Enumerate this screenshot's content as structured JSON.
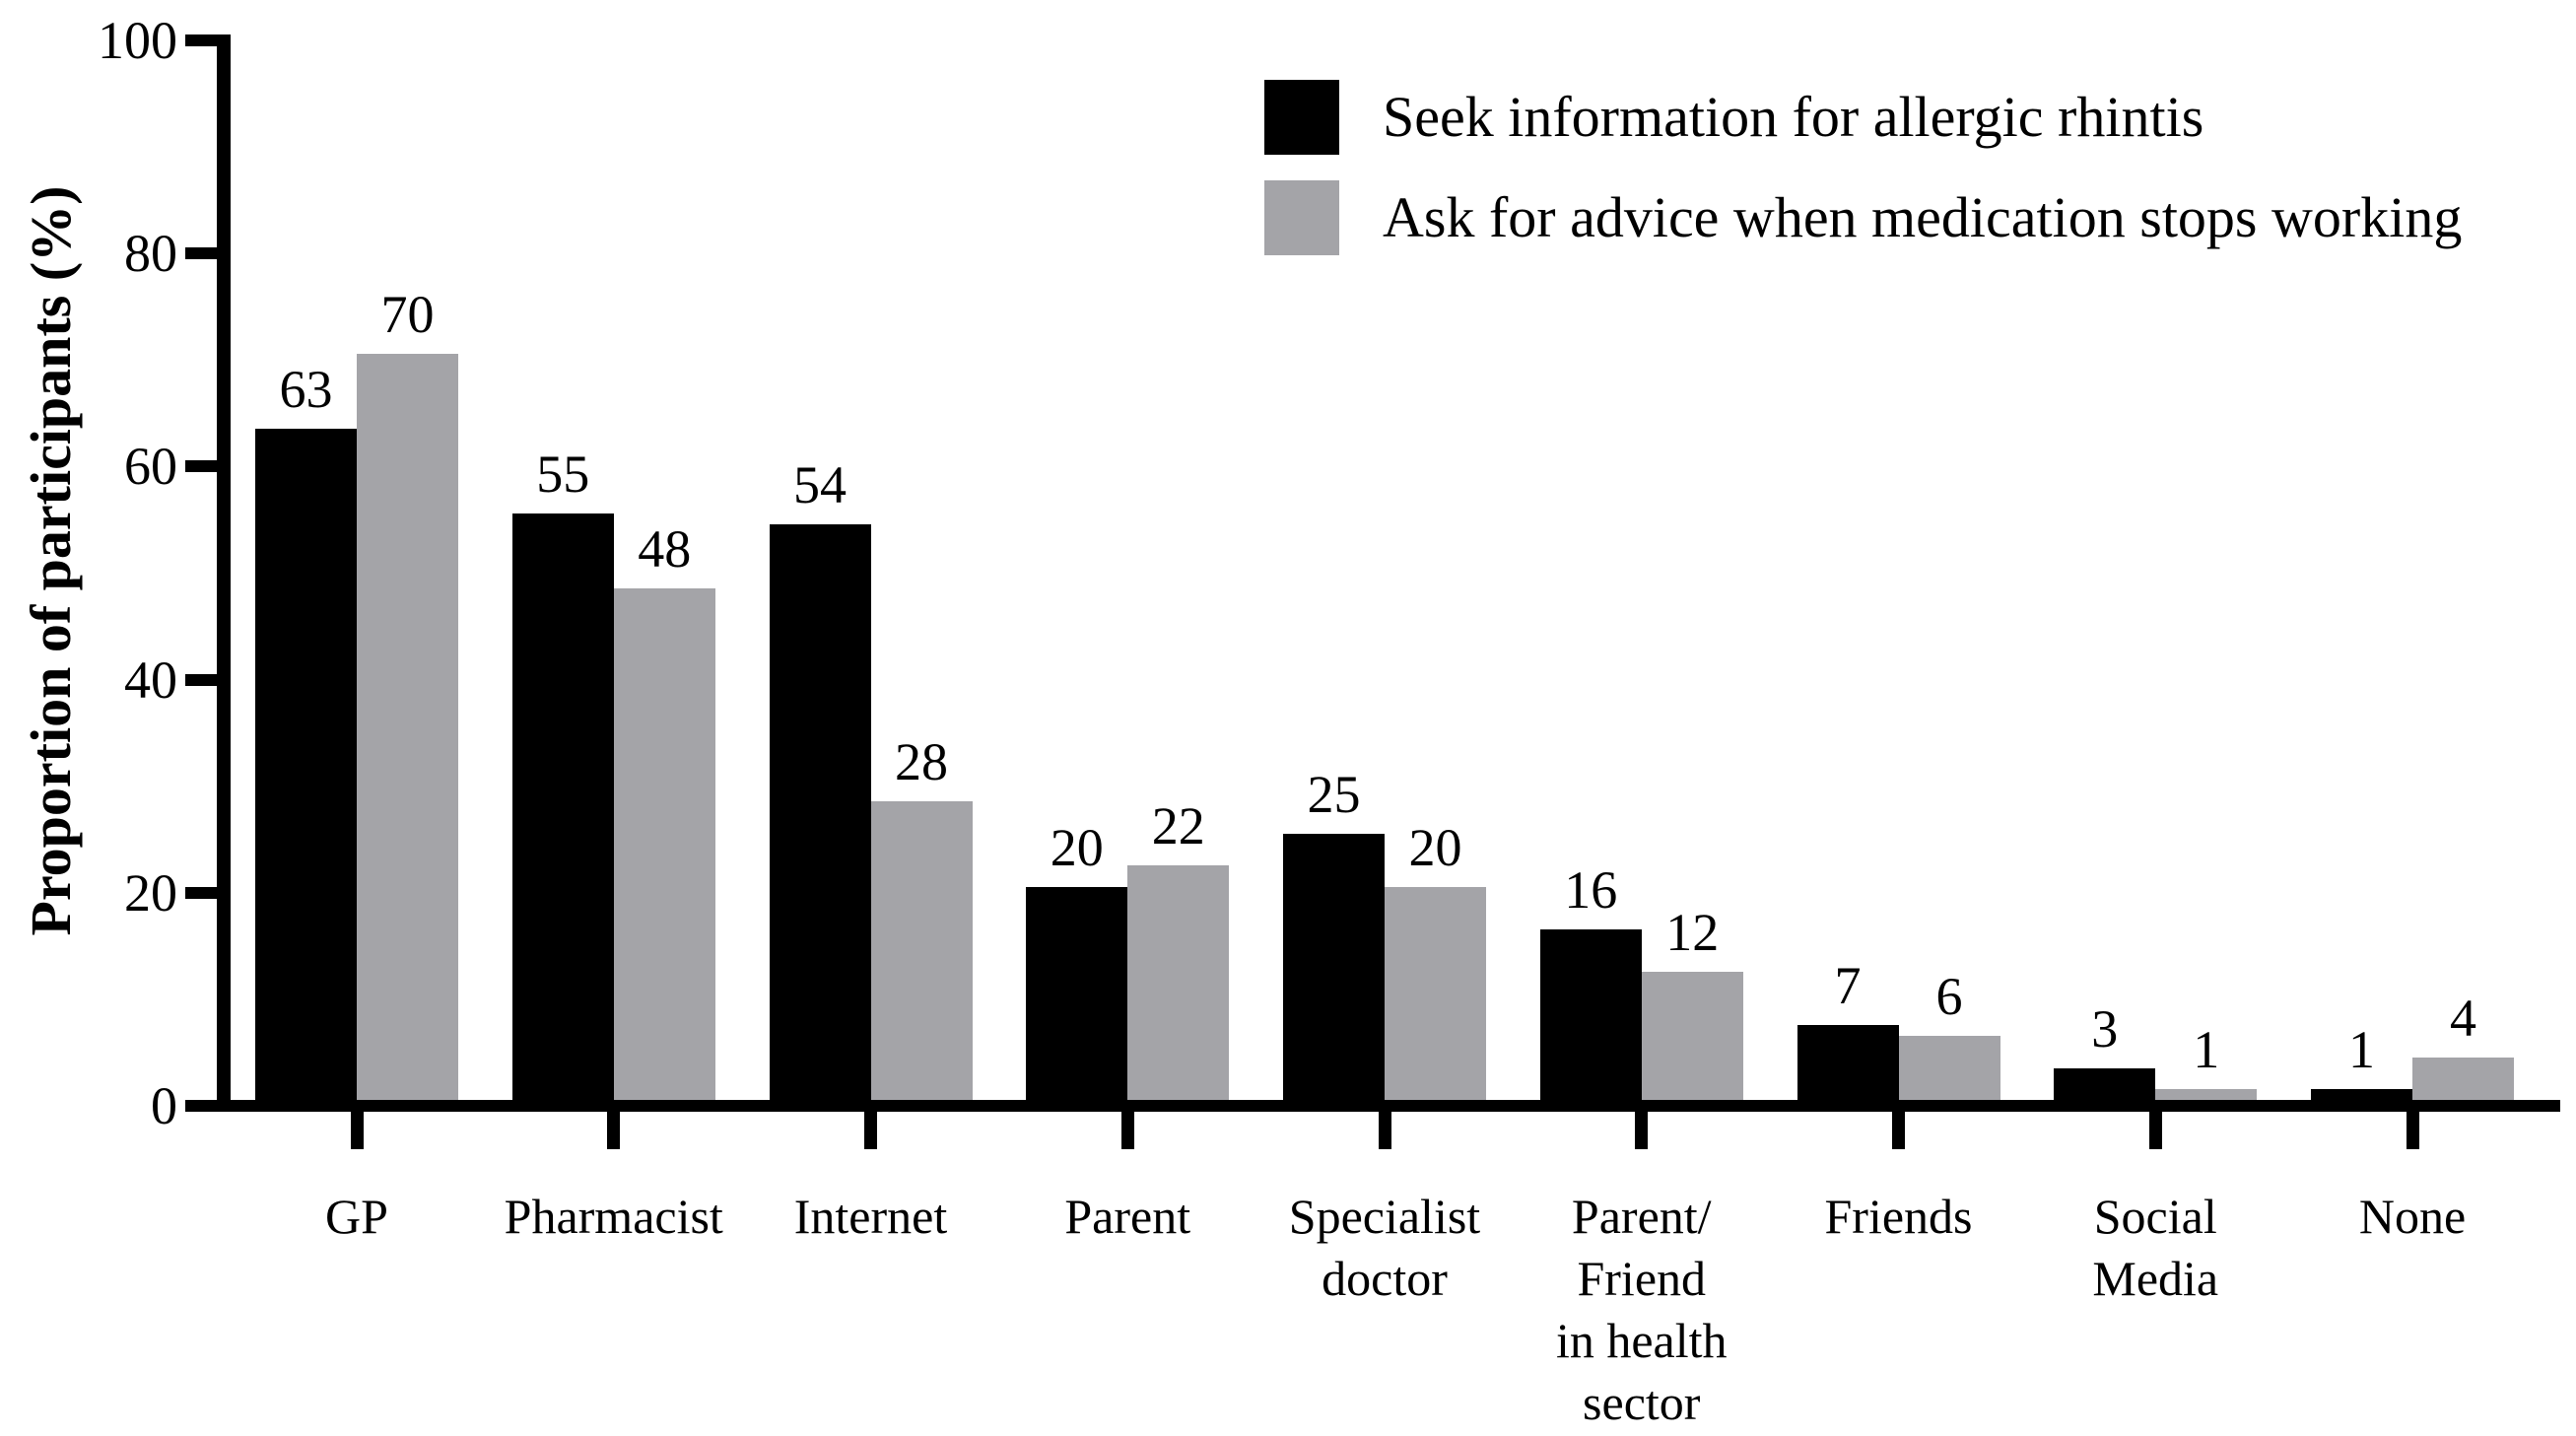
{
  "chart_data": {
    "type": "bar",
    "title": "",
    "xlabel": "",
    "ylabel": "Proportion of participants (%)",
    "ylim": [
      0,
      100
    ],
    "yticks": [
      0,
      20,
      40,
      60,
      80,
      100
    ],
    "grid": false,
    "legend_position": "top-right",
    "categories": [
      "GP",
      "Pharmacist",
      "Internet",
      "Parent",
      "Specialist doctor",
      "Parent/ Friend in health sector",
      "Friends",
      "Social Media",
      "None"
    ],
    "category_label_lines": [
      [
        "GP"
      ],
      [
        "Pharmacist"
      ],
      [
        "Internet"
      ],
      [
        "Parent"
      ],
      [
        "Specialist",
        "doctor"
      ],
      [
        "Parent/",
        "Friend",
        "in health",
        "sector"
      ],
      [
        "Friends"
      ],
      [
        "Social",
        "Media"
      ],
      [
        "None"
      ]
    ],
    "series": [
      {
        "name": "Seek information for allergic rhintis",
        "color": "#000000",
        "values": [
          63,
          55,
          54,
          20,
          25,
          16,
          7,
          3,
          1
        ]
      },
      {
        "name": "Ask for advice when medication stops working",
        "color": "#A4A4A8",
        "values": [
          70,
          48,
          28,
          22,
          20,
          12,
          6,
          1,
          4
        ]
      }
    ],
    "colors": {
      "axis": "#000000",
      "background": "#FFFFFF",
      "bar_series_1": "#000000",
      "bar_series_2": "#A4A4A8"
    }
  }
}
